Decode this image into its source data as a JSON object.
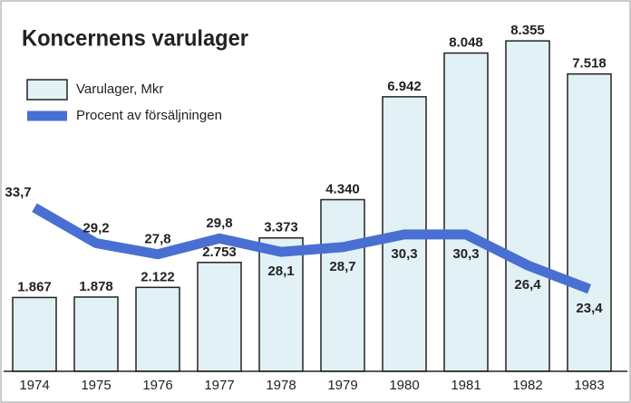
{
  "chart_data": {
    "type": "bar_line",
    "title": "Koncernens varulager",
    "categories": [
      "1974",
      "1975",
      "1976",
      "1977",
      "1978",
      "1979",
      "1980",
      "1981",
      "1982",
      "1983"
    ],
    "series": [
      {
        "name": "Varulager, Mkr",
        "type": "bar",
        "color": "#e2f1f6",
        "values": [
          1867,
          1878,
          2122,
          2753,
          3373,
          4340,
          6942,
          8048,
          8355,
          7518
        ],
        "value_labels": [
          "1.867",
          "1.878",
          "2.122",
          "2.753",
          "3.373",
          "4.340",
          "6.942",
          "8.048",
          "8.355",
          "7.518"
        ]
      },
      {
        "name": "Procent av försäljningen",
        "type": "line",
        "axis": "y2",
        "color": "#4a6fd2",
        "values": [
          33.7,
          29.2,
          27.8,
          29.8,
          28.1,
          28.7,
          30.3,
          30.3,
          26.4,
          23.4
        ],
        "value_labels": [
          "33,7",
          "29,2",
          "27,8",
          "29,8",
          "28,1",
          "28,7",
          "30,3",
          "30,3",
          "26,4",
          "23,4"
        ]
      }
    ],
    "ylim": [
      0,
      9000
    ],
    "y2lim": [
      13,
      58
    ],
    "legend": "upper left"
  }
}
